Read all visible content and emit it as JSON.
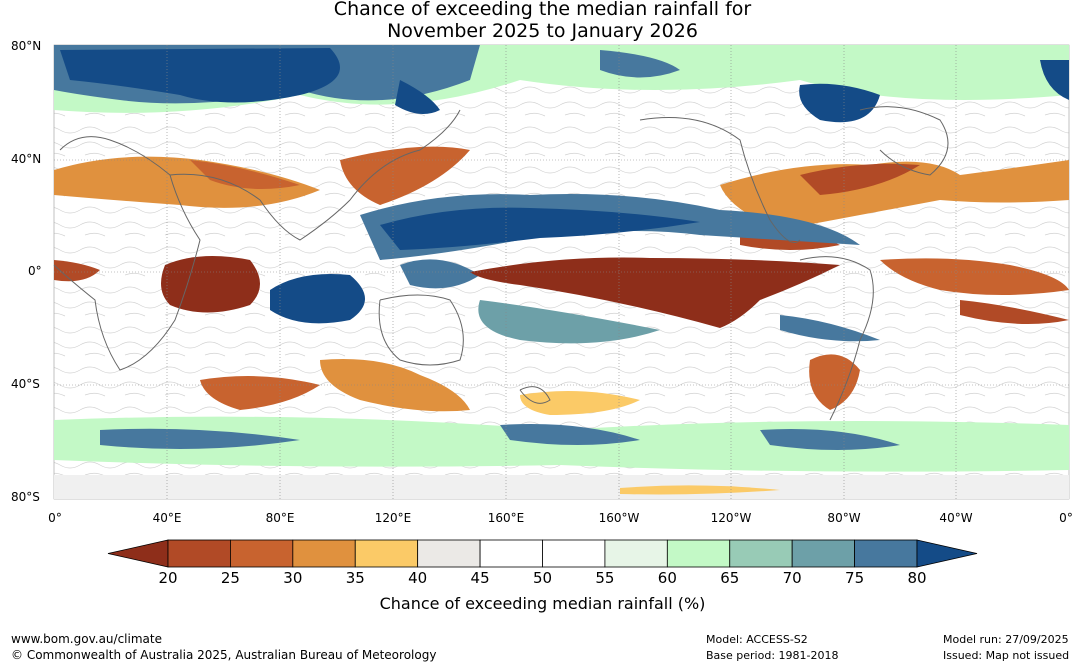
{
  "title_line1": "Chance of exceeding the median rainfall for",
  "title_line2": "November 2025 to January 2026",
  "lat_labels": [
    "80°N",
    "40°N",
    "0°",
    "40°S",
    "80°S"
  ],
  "lon_labels": [
    "0°",
    "40°E",
    "80°E",
    "120°E",
    "160°E",
    "160°W",
    "120°W",
    "80°W",
    "40°W",
    "0°"
  ],
  "colorbar": {
    "ticks": [
      "20",
      "25",
      "30",
      "35",
      "40",
      "45",
      "50",
      "55",
      "60",
      "65",
      "70",
      "75",
      "80"
    ],
    "colors": [
      "#8e2e1a",
      "#b14a26",
      "#c8632f",
      "#e0913e",
      "#fbca67",
      "#ebe9e6",
      "#ffffff",
      "#ffffff",
      "#e7f5e7",
      "#c3f9c6",
      "#98cbb6",
      "#6da0a8",
      "#47789e",
      "#144b87"
    ],
    "label": "Chance of exceeding median rainfall (%)"
  },
  "footer": {
    "url": "www.bom.gov.au/climate",
    "copyright": "© Commonwealth of Australia 2025, Australian Bureau of Meteorology",
    "model": "Model: ACCESS-S2",
    "base_period": "Base period: 1981-2018",
    "model_run": "Model run: 27/09/2025",
    "issued": "Issued: Map not issued"
  }
}
